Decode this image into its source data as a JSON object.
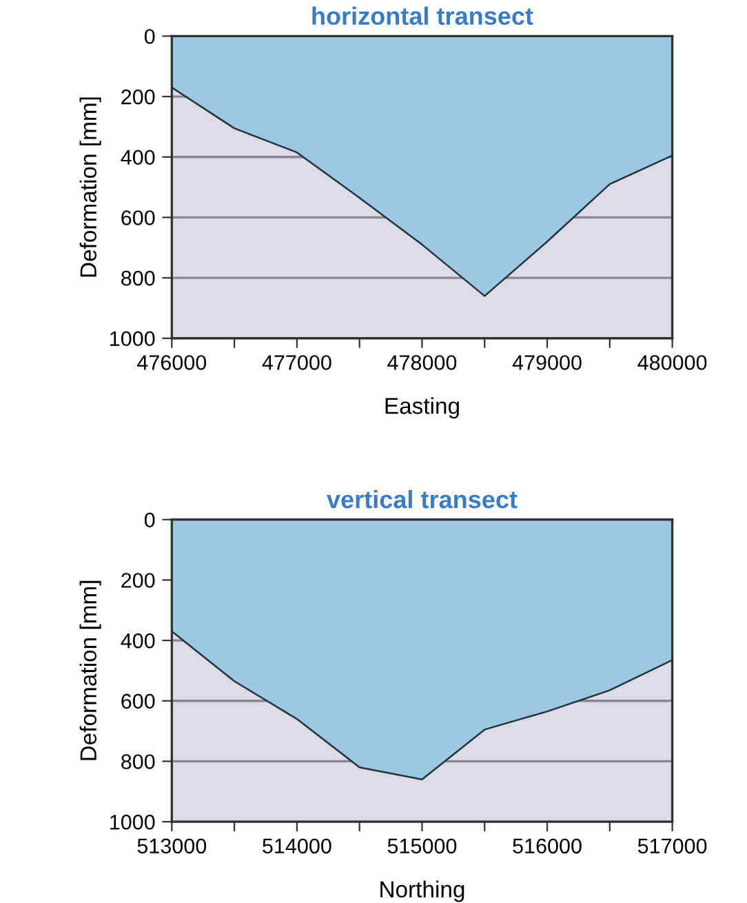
{
  "chart_data": [
    {
      "type": "area",
      "title": "horizontal transect",
      "xlabel": "Easting",
      "ylabel": "Deformation [mm]",
      "x": [
        476000,
        476500,
        477000,
        477500,
        478000,
        478500,
        479000,
        479500,
        480000
      ],
      "series": [
        {
          "color": "#9cc8e2",
          "values": [
            170,
            305,
            385,
            535,
            690,
            860,
            680,
            490,
            395
          ]
        }
      ],
      "xlim": [
        476000,
        480000
      ],
      "xticks": [
        476000,
        {
          "value": 476500,
          "label": null
        },
        477000,
        {
          "value": 477500,
          "label": null
        },
        478000,
        {
          "value": 478500,
          "label": null
        },
        479000,
        {
          "value": 479500,
          "label": null
        },
        480000
      ],
      "ylim": [
        1000,
        0
      ],
      "yticks": [
        0,
        200,
        400,
        600,
        800,
        1000
      ],
      "grid": "y"
    },
    {
      "type": "area",
      "title": "vertical transect",
      "xlabel": "Northing",
      "ylabel": "Deformation [mm]",
      "x": [
        513000,
        513500,
        514000,
        514500,
        515000,
        515500,
        516000,
        516500,
        517000
      ],
      "series": [
        {
          "color": "#9cc8e2",
          "values": [
            370,
            535,
            660,
            820,
            860,
            695,
            635,
            565,
            465
          ]
        }
      ],
      "xlim": [
        513000,
        517000
      ],
      "xticks": [
        513000,
        {
          "value": 513500,
          "label": null
        },
        514000,
        {
          "value": 514500,
          "label": null
        },
        515000,
        {
          "value": 515500,
          "label": null
        },
        516000,
        {
          "value": 516500,
          "label": null
        },
        517000
      ],
      "ylim": [
        1000,
        0
      ],
      "yticks": [
        0,
        200,
        400,
        600,
        800,
        1000
      ],
      "grid": "y"
    }
  ]
}
